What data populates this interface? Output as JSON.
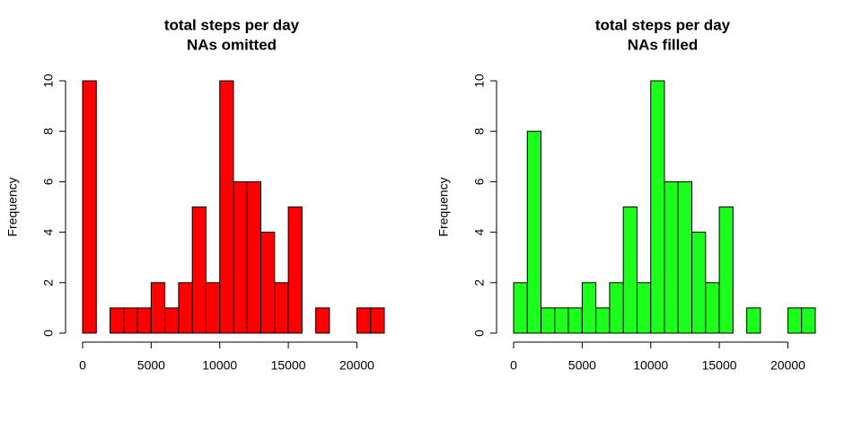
{
  "chart_data": [
    {
      "type": "histogram",
      "title": [
        "total steps per day",
        "NAs omitted"
      ],
      "ylabel": "Frequency",
      "bins": [
        0,
        1000,
        2000,
        3000,
        4000,
        5000,
        6000,
        7000,
        8000,
        9000,
        10000,
        11000,
        12000,
        13000,
        14000,
        15000,
        16000,
        17000,
        18000,
        19000,
        20000,
        21000,
        22000
      ],
      "values": [
        10,
        0,
        1,
        1,
        1,
        2,
        1,
        2,
        5,
        2,
        10,
        6,
        6,
        4,
        2,
        5,
        0,
        1,
        0,
        0,
        1,
        1
      ],
      "color": "#ff0000",
      "xlim": [
        0,
        22000
      ],
      "xticks": [
        0,
        5000,
        10000,
        15000,
        20000
      ],
      "ylim": [
        0,
        10
      ],
      "yticks": [
        0,
        2,
        4,
        6,
        8,
        10
      ]
    },
    {
      "type": "histogram",
      "title": [
        "total steps per day",
        "NAs filled"
      ],
      "ylabel": "Frequency",
      "bins": [
        0,
        1000,
        2000,
        3000,
        4000,
        5000,
        6000,
        7000,
        8000,
        9000,
        10000,
        11000,
        12000,
        13000,
        14000,
        15000,
        16000,
        17000,
        18000,
        19000,
        20000,
        21000,
        22000
      ],
      "values": [
        2,
        8,
        1,
        1,
        1,
        2,
        1,
        2,
        5,
        2,
        10,
        6,
        6,
        4,
        2,
        5,
        0,
        1,
        0,
        0,
        1,
        1
      ],
      "color": "#1cff1c",
      "xlim": [
        0,
        22000
      ],
      "xticks": [
        0,
        5000,
        10000,
        15000,
        20000
      ],
      "ylim": [
        0,
        10
      ],
      "yticks": [
        0,
        2,
        4,
        6,
        8,
        10
      ]
    }
  ]
}
